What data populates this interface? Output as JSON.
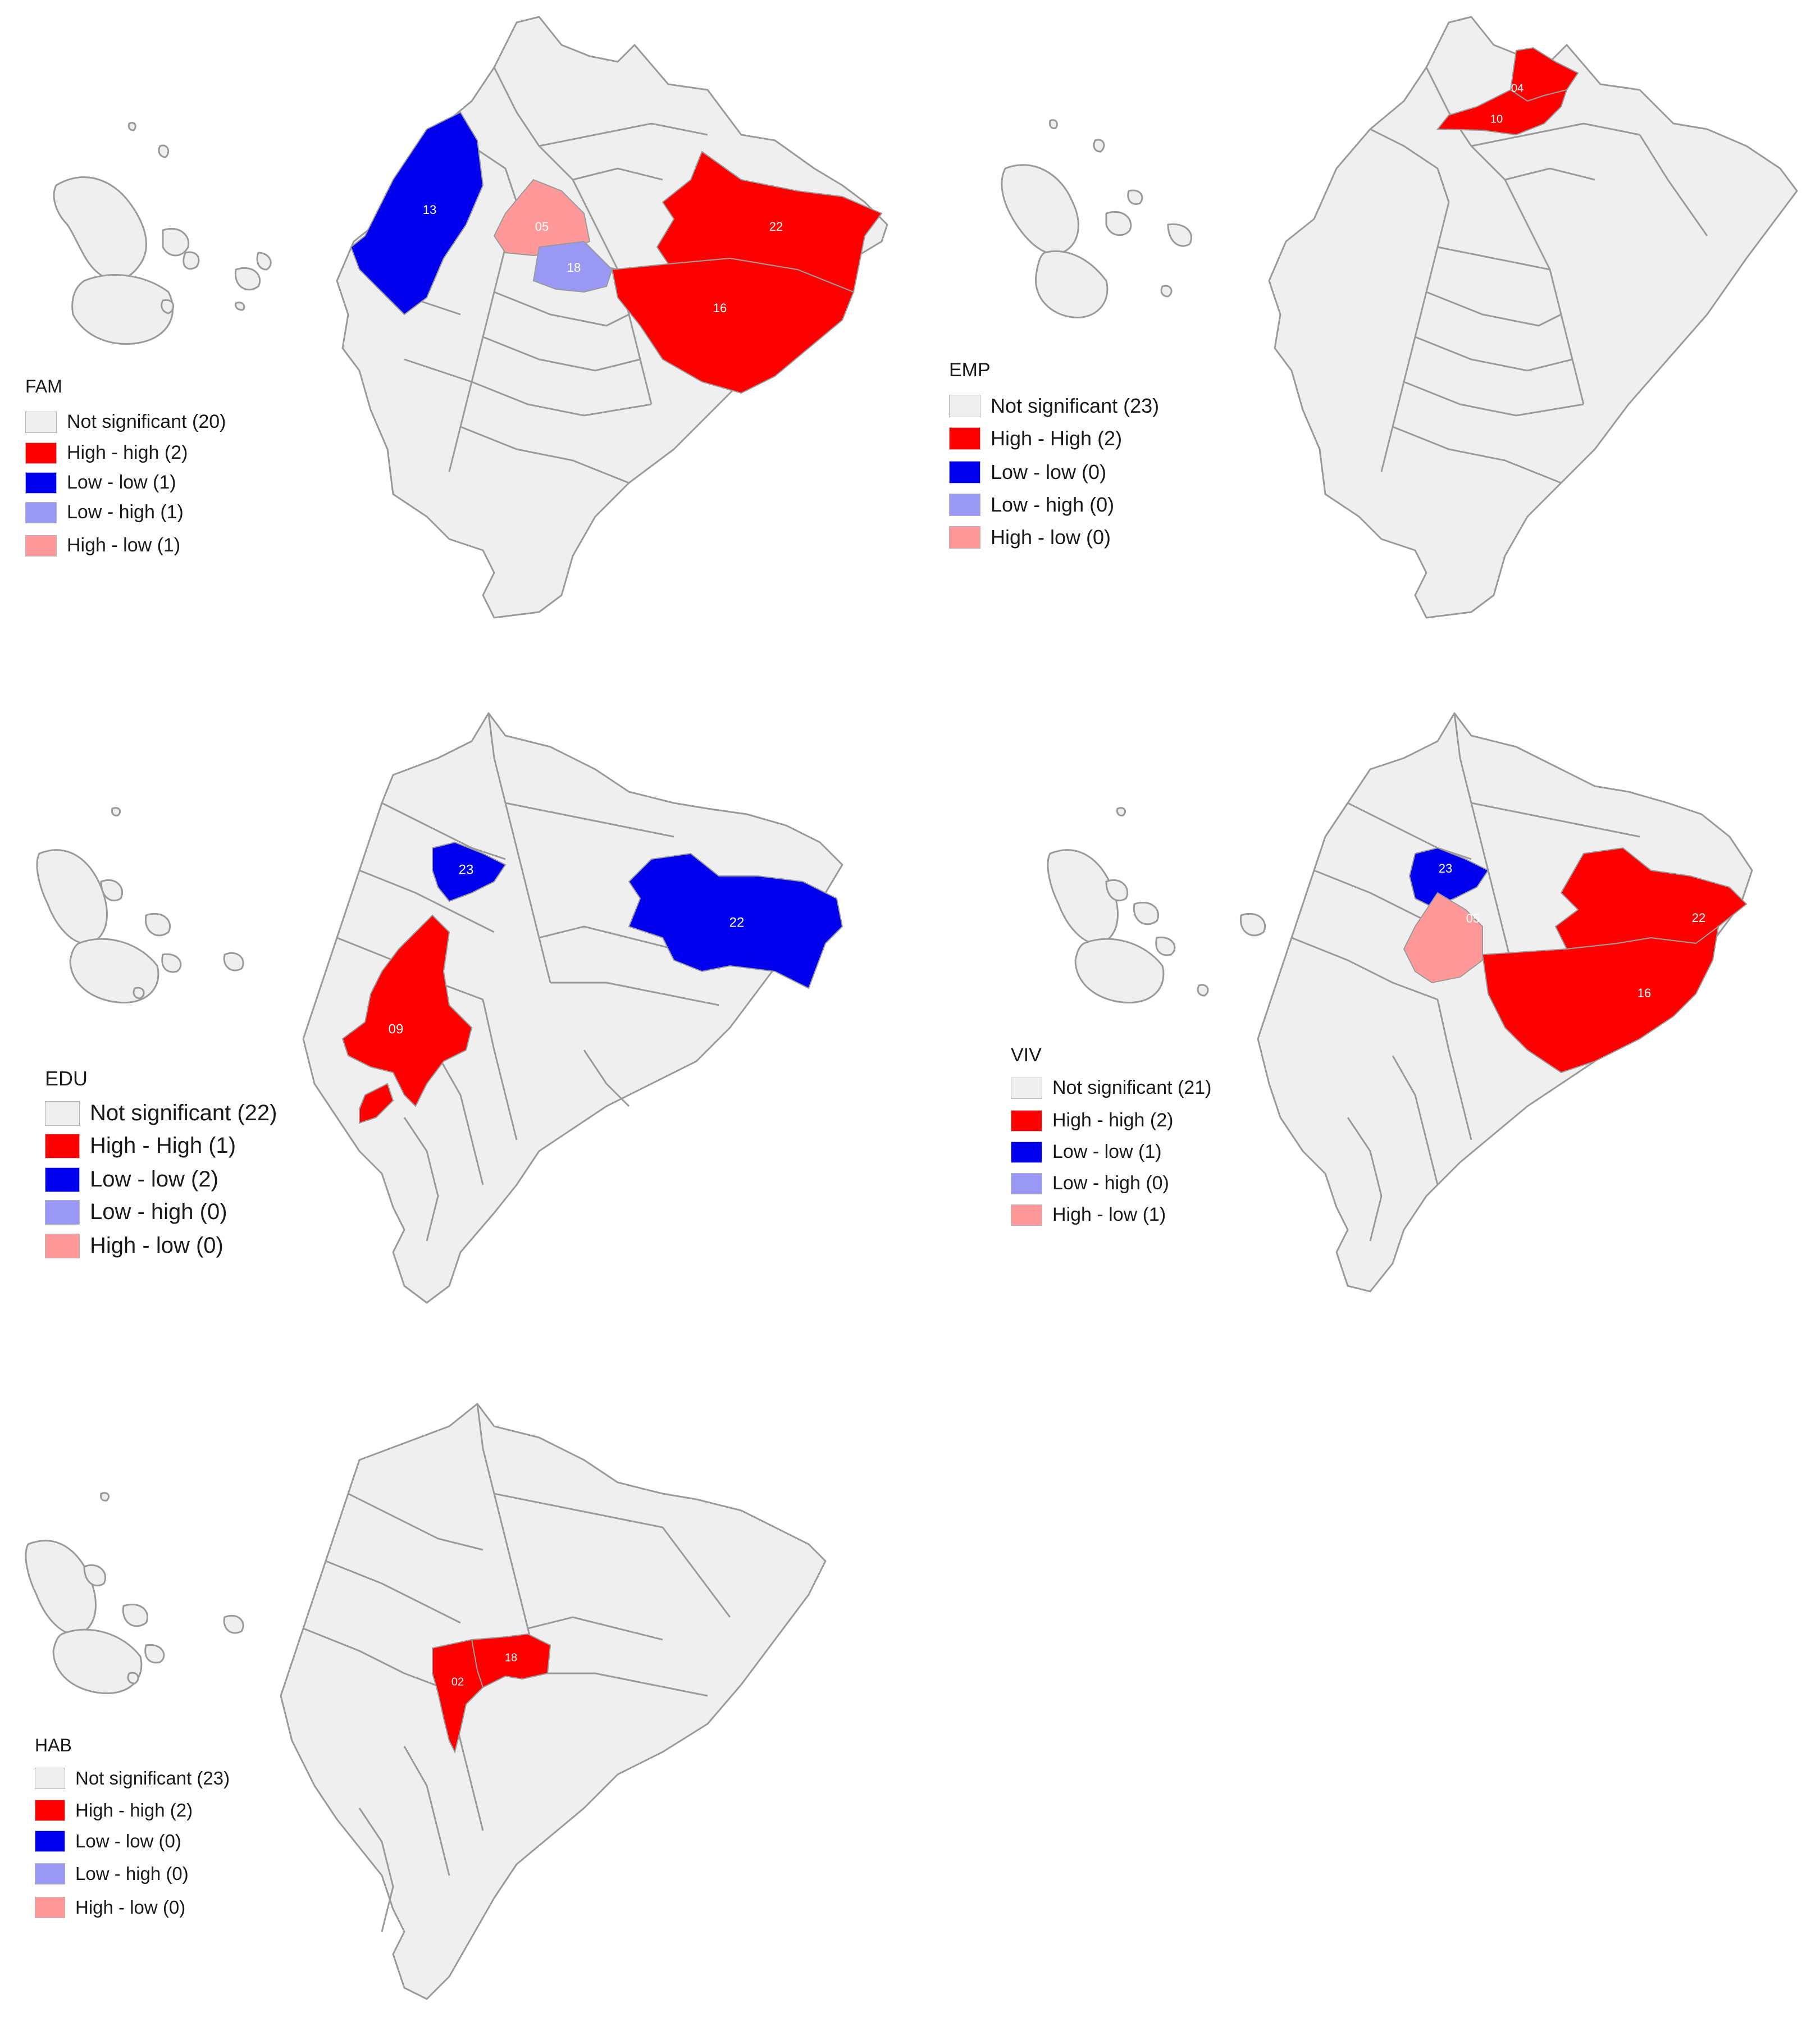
{
  "colors": {
    "not_significant": "#efefef",
    "high_high": "#ff0000",
    "low_low": "#0000ee",
    "low_high": "#9999f5",
    "high_low": "#ff9999",
    "border": "#9a9a9a"
  },
  "maps": [
    {
      "id": "fam",
      "legend_title": "FAM",
      "legend": [
        {
          "label": "Not significant (20)",
          "color": "#efefef"
        },
        {
          "label": "High - high (2)",
          "color": "#ff0000"
        },
        {
          "label": "Low - low (1)",
          "color": "#0000ee"
        },
        {
          "label": "Low - high (1)",
          "color": "#9999f5"
        },
        {
          "label": "High - low (1)",
          "color": "#ff9999"
        }
      ],
      "regions": [
        {
          "code": "13",
          "category": "low_low"
        },
        {
          "code": "05",
          "category": "high_low"
        },
        {
          "code": "18",
          "category": "low_high"
        },
        {
          "code": "22",
          "category": "high_high"
        },
        {
          "code": "16",
          "category": "high_high"
        }
      ]
    },
    {
      "id": "emp",
      "legend_title": "EMP",
      "legend": [
        {
          "label": "Not significant (23)",
          "color": "#efefef"
        },
        {
          "label": "High - High (2)",
          "color": "#ff0000"
        },
        {
          "label": "Low - low (0)",
          "color": "#0000ee"
        },
        {
          "label": "Low - high (0)",
          "color": "#9999f5"
        },
        {
          "label": "High - low (0)",
          "color": "#ff9999"
        }
      ],
      "regions": [
        {
          "code": "04",
          "category": "high_high"
        },
        {
          "code": "10",
          "category": "high_high"
        }
      ]
    },
    {
      "id": "edu",
      "legend_title": "EDU",
      "legend": [
        {
          "label": "Not significant (22)",
          "color": "#efefef"
        },
        {
          "label": "High - High (1)",
          "color": "#ff0000"
        },
        {
          "label": "Low - low (2)",
          "color": "#0000ee"
        },
        {
          "label": "Low - high (0)",
          "color": "#9999f5"
        },
        {
          "label": "High - low (0)",
          "color": "#ff9999"
        }
      ],
      "regions": [
        {
          "code": "23",
          "category": "low_low"
        },
        {
          "code": "22",
          "category": "low_low"
        },
        {
          "code": "09",
          "category": "high_high"
        }
      ]
    },
    {
      "id": "viv",
      "legend_title": "VIV",
      "legend": [
        {
          "label": "Not significant (21)",
          "color": "#efefef"
        },
        {
          "label": "High - high (2)",
          "color": "#ff0000"
        },
        {
          "label": "Low - low (1)",
          "color": "#0000ee"
        },
        {
          "label": "Low - high (0)",
          "color": "#9999f5"
        },
        {
          "label": "High - low (1)",
          "color": "#ff9999"
        }
      ],
      "regions": [
        {
          "code": "23",
          "category": "low_low"
        },
        {
          "code": "05",
          "category": "high_low"
        },
        {
          "code": "22",
          "category": "high_high"
        },
        {
          "code": "16",
          "category": "high_high"
        }
      ]
    },
    {
      "id": "hab",
      "legend_title": "HAB",
      "legend": [
        {
          "label": "Not significant (23)",
          "color": "#efefef"
        },
        {
          "label": "High - high (2)",
          "color": "#ff0000"
        },
        {
          "label": "Low - low (0)",
          "color": "#0000ee"
        },
        {
          "label": "Low - high (0)",
          "color": "#9999f5"
        },
        {
          "label": "High - low (0)",
          "color": "#ff9999"
        }
      ],
      "regions": [
        {
          "code": "18",
          "category": "high_high"
        },
        {
          "code": "02",
          "category": "high_high"
        }
      ]
    }
  ]
}
